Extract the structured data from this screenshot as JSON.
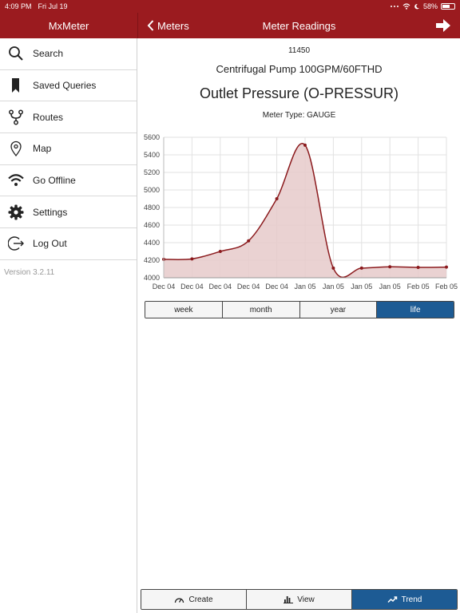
{
  "status_bar": {
    "time": "4:09 PM",
    "date": "Fri Jul 19",
    "battery": "58%"
  },
  "header": {
    "app_title": "MxMeter",
    "back_label": "Meters",
    "title": "Meter Readings"
  },
  "sidebar": {
    "items": [
      {
        "label": "Search",
        "icon": "search-icon"
      },
      {
        "label": "Saved Queries",
        "icon": "bookmark-icon"
      },
      {
        "label": "Routes",
        "icon": "route-icon"
      },
      {
        "label": "Map",
        "icon": "map-pin-icon"
      },
      {
        "label": "Go Offline",
        "icon": "wifi-icon"
      },
      {
        "label": "Settings",
        "icon": "gear-icon"
      },
      {
        "label": "Log Out",
        "icon": "logout-icon"
      }
    ],
    "version": "Version 3.2.11"
  },
  "meter": {
    "number": "11450",
    "asset": "Centrifugal Pump 100GPM/60FTHD",
    "title": "Outlet Pressure (O-PRESSUR)",
    "type_label": "Meter Type: GAUGE"
  },
  "chart_data": {
    "type": "area",
    "title": "Outlet Pressure (O-PRESSUR)",
    "categories": [
      "Dec 04",
      "Dec 04",
      "Dec 04",
      "Dec 04",
      "Dec 04",
      "Jan 05",
      "Jan 05",
      "Jan 05",
      "Jan 05",
      "Feb 05",
      "Feb 05"
    ],
    "values": [
      4210,
      4215,
      4300,
      4420,
      4900,
      5510,
      4110,
      4110,
      4125,
      4118,
      4122
    ],
    "ylim": [
      4000,
      5600
    ],
    "yticks": [
      4000,
      4200,
      4400,
      4600,
      4800,
      5000,
      5200,
      5400,
      5600
    ],
    "grid": true,
    "line_color": "#8b1a1d",
    "fill_color": "#e6caca"
  },
  "range_tabs": [
    {
      "label": "week",
      "active": false
    },
    {
      "label": "month",
      "active": false
    },
    {
      "label": "year",
      "active": false
    },
    {
      "label": "life",
      "active": true
    }
  ],
  "bottom_tabs": [
    {
      "label": "Create",
      "icon": "gauge-icon",
      "active": false
    },
    {
      "label": "View",
      "icon": "bar-chart-icon",
      "active": false
    },
    {
      "label": "Trend",
      "icon": "trend-icon",
      "active": true
    }
  ]
}
